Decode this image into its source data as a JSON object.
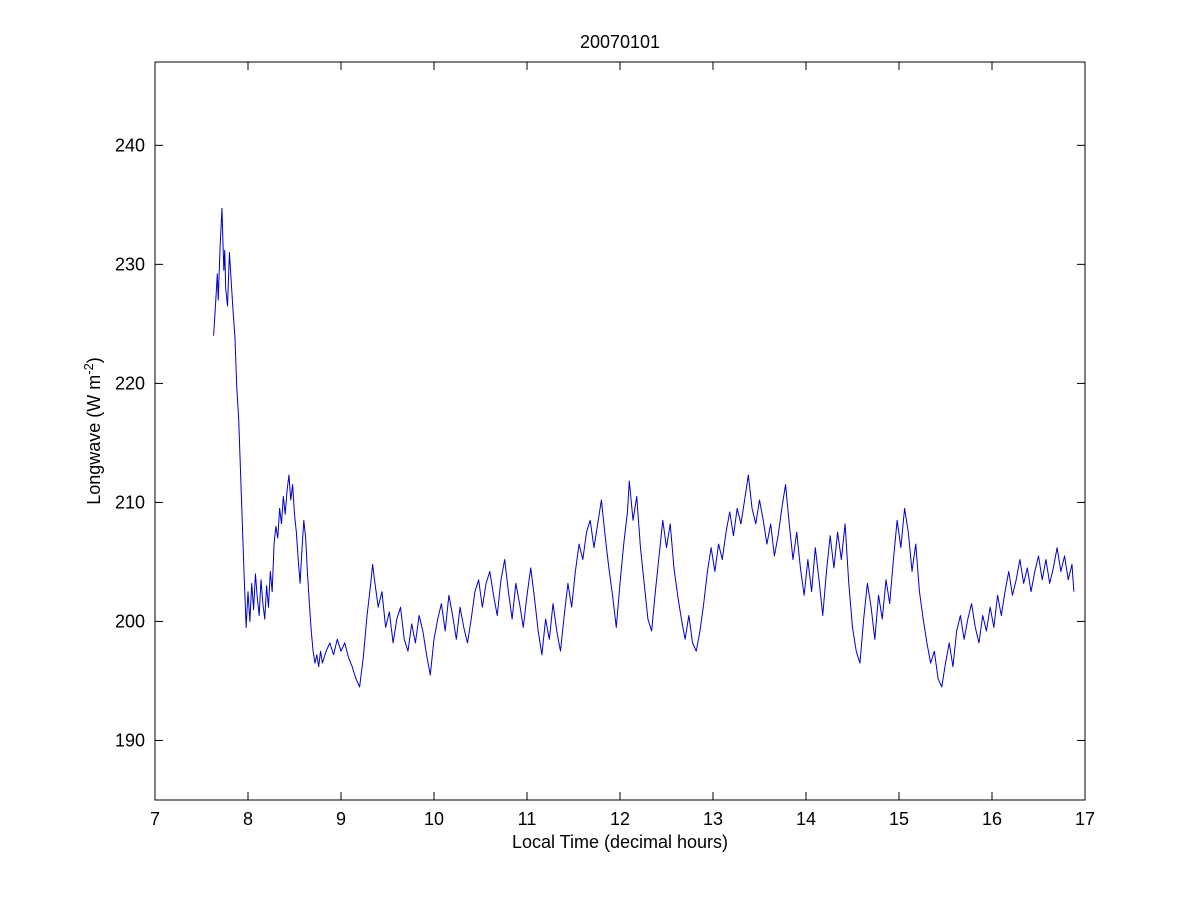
{
  "figure": {
    "title": "20070101",
    "xlabel": "Local Time (decimal hours)",
    "ylabel_prefix": "Longwave (W m",
    "ylabel_sup": "-2",
    "ylabel_suffix": ")",
    "axis_color": "#000000",
    "background": "#ffffff",
    "line_color": "#0000cc"
  },
  "chart_data": {
    "type": "line",
    "title": "20070101",
    "xlabel": "Local Time (decimal hours)",
    "ylabel": "Longwave (W m⁻²)",
    "xlim": [
      7,
      17
    ],
    "ylim": [
      185,
      247
    ],
    "x_ticks": [
      7,
      8,
      9,
      10,
      11,
      12,
      13,
      14,
      15,
      16,
      17
    ],
    "y_ticks": [
      190,
      200,
      210,
      220,
      230,
      240
    ],
    "grid": false,
    "legend": null,
    "series": [
      {
        "name": "longwave",
        "color": "#0000cc",
        "points": [
          [
            7.63,
            224.0
          ],
          [
            7.65,
            226.5
          ],
          [
            7.67,
            229.2
          ],
          [
            7.68,
            227.0
          ],
          [
            7.7,
            231.5
          ],
          [
            7.72,
            234.7
          ],
          [
            7.73,
            232.0
          ],
          [
            7.74,
            229.5
          ],
          [
            7.75,
            231.2
          ],
          [
            7.76,
            228.0
          ],
          [
            7.78,
            226.5
          ],
          [
            7.8,
            231.0
          ],
          [
            7.82,
            228.5
          ],
          [
            7.84,
            226.0
          ],
          [
            7.86,
            223.8
          ],
          [
            7.88,
            219.5
          ],
          [
            7.9,
            217.0
          ],
          [
            7.92,
            212.5
          ],
          [
            7.94,
            208.0
          ],
          [
            7.96,
            203.5
          ],
          [
            7.98,
            199.5
          ],
          [
            8.0,
            202.5
          ],
          [
            8.02,
            200.0
          ],
          [
            8.04,
            203.2
          ],
          [
            8.06,
            201.0
          ],
          [
            8.08,
            204.0
          ],
          [
            8.1,
            202.0
          ],
          [
            8.12,
            200.5
          ],
          [
            8.14,
            203.5
          ],
          [
            8.16,
            201.5
          ],
          [
            8.18,
            200.2
          ],
          [
            8.2,
            203.0
          ],
          [
            8.22,
            201.2
          ],
          [
            8.24,
            204.2
          ],
          [
            8.26,
            202.5
          ],
          [
            8.28,
            206.5
          ],
          [
            8.3,
            208.0
          ],
          [
            8.32,
            207.0
          ],
          [
            8.34,
            209.5
          ],
          [
            8.36,
            208.2
          ],
          [
            8.38,
            210.5
          ],
          [
            8.4,
            209.0
          ],
          [
            8.42,
            211.0
          ],
          [
            8.44,
            212.3
          ],
          [
            8.46,
            210.2
          ],
          [
            8.48,
            211.5
          ],
          [
            8.5,
            209.0
          ],
          [
            8.52,
            207.5
          ],
          [
            8.54,
            205.2
          ],
          [
            8.56,
            203.2
          ],
          [
            8.58,
            206.0
          ],
          [
            8.6,
            208.5
          ],
          [
            8.62,
            207.0
          ],
          [
            8.64,
            204.0
          ],
          [
            8.66,
            201.5
          ],
          [
            8.68,
            199.2
          ],
          [
            8.7,
            197.5
          ],
          [
            8.72,
            196.5
          ],
          [
            8.74,
            197.2
          ],
          [
            8.76,
            196.2
          ],
          [
            8.78,
            197.5
          ],
          [
            8.8,
            196.5
          ],
          [
            8.84,
            197.5
          ],
          [
            8.88,
            198.2
          ],
          [
            8.92,
            197.2
          ],
          [
            8.96,
            198.5
          ],
          [
            9.0,
            197.5
          ],
          [
            9.04,
            198.2
          ],
          [
            9.08,
            197.0
          ],
          [
            9.12,
            196.2
          ],
          [
            9.16,
            195.2
          ],
          [
            9.2,
            194.5
          ],
          [
            9.24,
            197.0
          ],
          [
            9.28,
            200.5
          ],
          [
            9.32,
            203.2
          ],
          [
            9.34,
            204.8
          ],
          [
            9.36,
            203.5
          ],
          [
            9.4,
            201.2
          ],
          [
            9.44,
            202.5
          ],
          [
            9.48,
            199.5
          ],
          [
            9.52,
            200.8
          ],
          [
            9.56,
            198.2
          ],
          [
            9.6,
            200.2
          ],
          [
            9.64,
            201.2
          ],
          [
            9.68,
            198.5
          ],
          [
            9.72,
            197.5
          ],
          [
            9.76,
            199.8
          ],
          [
            9.8,
            198.2
          ],
          [
            9.84,
            200.5
          ],
          [
            9.88,
            199.2
          ],
          [
            9.92,
            197.2
          ],
          [
            9.96,
            195.5
          ],
          [
            10.0,
            198.5
          ],
          [
            10.04,
            200.2
          ],
          [
            10.08,
            201.5
          ],
          [
            10.12,
            199.2
          ],
          [
            10.16,
            202.2
          ],
          [
            10.2,
            200.5
          ],
          [
            10.24,
            198.5
          ],
          [
            10.28,
            201.2
          ],
          [
            10.32,
            199.5
          ],
          [
            10.36,
            198.2
          ],
          [
            10.4,
            200.2
          ],
          [
            10.44,
            202.5
          ],
          [
            10.48,
            203.5
          ],
          [
            10.52,
            201.2
          ],
          [
            10.56,
            203.2
          ],
          [
            10.6,
            204.2
          ],
          [
            10.64,
            202.2
          ],
          [
            10.68,
            200.5
          ],
          [
            10.72,
            203.5
          ],
          [
            10.76,
            205.2
          ],
          [
            10.8,
            202.5
          ],
          [
            10.84,
            200.2
          ],
          [
            10.88,
            203.2
          ],
          [
            10.92,
            201.5
          ],
          [
            10.96,
            199.5
          ],
          [
            11.0,
            202.2
          ],
          [
            11.04,
            204.5
          ],
          [
            11.08,
            202.0
          ],
          [
            11.12,
            199.2
          ],
          [
            11.16,
            197.2
          ],
          [
            11.2,
            200.2
          ],
          [
            11.24,
            198.5
          ],
          [
            11.28,
            201.5
          ],
          [
            11.32,
            199.2
          ],
          [
            11.36,
            197.5
          ],
          [
            11.4,
            200.5
          ],
          [
            11.44,
            203.2
          ],
          [
            11.48,
            201.2
          ],
          [
            11.52,
            204.2
          ],
          [
            11.56,
            206.5
          ],
          [
            11.6,
            205.2
          ],
          [
            11.64,
            207.5
          ],
          [
            11.68,
            208.5
          ],
          [
            11.72,
            206.2
          ],
          [
            11.76,
            208.2
          ],
          [
            11.8,
            210.2
          ],
          [
            11.84,
            207.2
          ],
          [
            11.88,
            204.5
          ],
          [
            11.92,
            202.2
          ],
          [
            11.96,
            199.5
          ],
          [
            12.0,
            203.2
          ],
          [
            12.04,
            206.5
          ],
          [
            12.08,
            209.2
          ],
          [
            12.1,
            211.8
          ],
          [
            12.14,
            208.5
          ],
          [
            12.18,
            210.5
          ],
          [
            12.22,
            206.2
          ],
          [
            12.26,
            203.2
          ],
          [
            12.3,
            200.2
          ],
          [
            12.34,
            199.2
          ],
          [
            12.38,
            202.5
          ],
          [
            12.42,
            205.5
          ],
          [
            12.46,
            208.5
          ],
          [
            12.5,
            206.2
          ],
          [
            12.54,
            208.2
          ],
          [
            12.58,
            204.5
          ],
          [
            12.62,
            202.2
          ],
          [
            12.66,
            200.2
          ],
          [
            12.7,
            198.5
          ],
          [
            12.74,
            200.5
          ],
          [
            12.78,
            198.2
          ],
          [
            12.82,
            197.5
          ],
          [
            12.86,
            199.2
          ],
          [
            12.9,
            201.5
          ],
          [
            12.94,
            204.2
          ],
          [
            12.98,
            206.2
          ],
          [
            13.02,
            204.2
          ],
          [
            13.06,
            206.5
          ],
          [
            13.1,
            205.2
          ],
          [
            13.14,
            207.5
          ],
          [
            13.18,
            209.2
          ],
          [
            13.22,
            207.2
          ],
          [
            13.26,
            209.5
          ],
          [
            13.3,
            208.2
          ],
          [
            13.34,
            210.2
          ],
          [
            13.38,
            212.3
          ],
          [
            13.42,
            209.5
          ],
          [
            13.46,
            208.2
          ],
          [
            13.5,
            210.2
          ],
          [
            13.54,
            208.5
          ],
          [
            13.58,
            206.5
          ],
          [
            13.62,
            208.2
          ],
          [
            13.66,
            205.5
          ],
          [
            13.7,
            207.2
          ],
          [
            13.74,
            209.5
          ],
          [
            13.78,
            211.5
          ],
          [
            13.82,
            208.2
          ],
          [
            13.86,
            205.2
          ],
          [
            13.9,
            207.5
          ],
          [
            13.94,
            204.5
          ],
          [
            13.98,
            202.2
          ],
          [
            14.02,
            205.2
          ],
          [
            14.06,
            202.5
          ],
          [
            14.1,
            206.2
          ],
          [
            14.14,
            203.5
          ],
          [
            14.18,
            200.5
          ],
          [
            14.22,
            204.2
          ],
          [
            14.26,
            207.2
          ],
          [
            14.3,
            204.5
          ],
          [
            14.34,
            207.5
          ],
          [
            14.38,
            205.2
          ],
          [
            14.42,
            208.2
          ],
          [
            14.46,
            203.2
          ],
          [
            14.5,
            199.5
          ],
          [
            14.54,
            197.5
          ],
          [
            14.58,
            196.5
          ],
          [
            14.62,
            200.2
          ],
          [
            14.66,
            203.2
          ],
          [
            14.7,
            201.2
          ],
          [
            14.74,
            198.5
          ],
          [
            14.78,
            202.2
          ],
          [
            14.82,
            200.2
          ],
          [
            14.86,
            203.5
          ],
          [
            14.9,
            201.5
          ],
          [
            14.94,
            205.2
          ],
          [
            14.98,
            208.5
          ],
          [
            15.02,
            206.2
          ],
          [
            15.06,
            209.5
          ],
          [
            15.1,
            207.5
          ],
          [
            15.14,
            204.2
          ],
          [
            15.18,
            206.5
          ],
          [
            15.22,
            202.5
          ],
          [
            15.26,
            200.2
          ],
          [
            15.3,
            198.2
          ],
          [
            15.34,
            196.5
          ],
          [
            15.38,
            197.5
          ],
          [
            15.42,
            195.2
          ],
          [
            15.46,
            194.5
          ],
          [
            15.5,
            196.5
          ],
          [
            15.54,
            198.2
          ],
          [
            15.58,
            196.2
          ],
          [
            15.62,
            199.2
          ],
          [
            15.66,
            200.5
          ],
          [
            15.7,
            198.5
          ],
          [
            15.74,
            200.2
          ],
          [
            15.78,
            201.5
          ],
          [
            15.82,
            199.5
          ],
          [
            15.86,
            198.2
          ],
          [
            15.9,
            200.5
          ],
          [
            15.94,
            199.2
          ],
          [
            15.98,
            201.2
          ],
          [
            16.02,
            199.5
          ],
          [
            16.06,
            202.2
          ],
          [
            16.1,
            200.5
          ],
          [
            16.14,
            202.5
          ],
          [
            16.18,
            204.2
          ],
          [
            16.22,
            202.2
          ],
          [
            16.26,
            203.5
          ],
          [
            16.3,
            205.2
          ],
          [
            16.34,
            203.2
          ],
          [
            16.38,
            204.5
          ],
          [
            16.42,
            202.5
          ],
          [
            16.46,
            204.2
          ],
          [
            16.5,
            205.5
          ],
          [
            16.54,
            203.5
          ],
          [
            16.58,
            205.2
          ],
          [
            16.62,
            203.2
          ],
          [
            16.66,
            204.5
          ],
          [
            16.7,
            206.2
          ],
          [
            16.74,
            204.2
          ],
          [
            16.78,
            205.5
          ],
          [
            16.82,
            203.5
          ],
          [
            16.86,
            204.8
          ],
          [
            16.88,
            202.5
          ]
        ]
      }
    ]
  }
}
